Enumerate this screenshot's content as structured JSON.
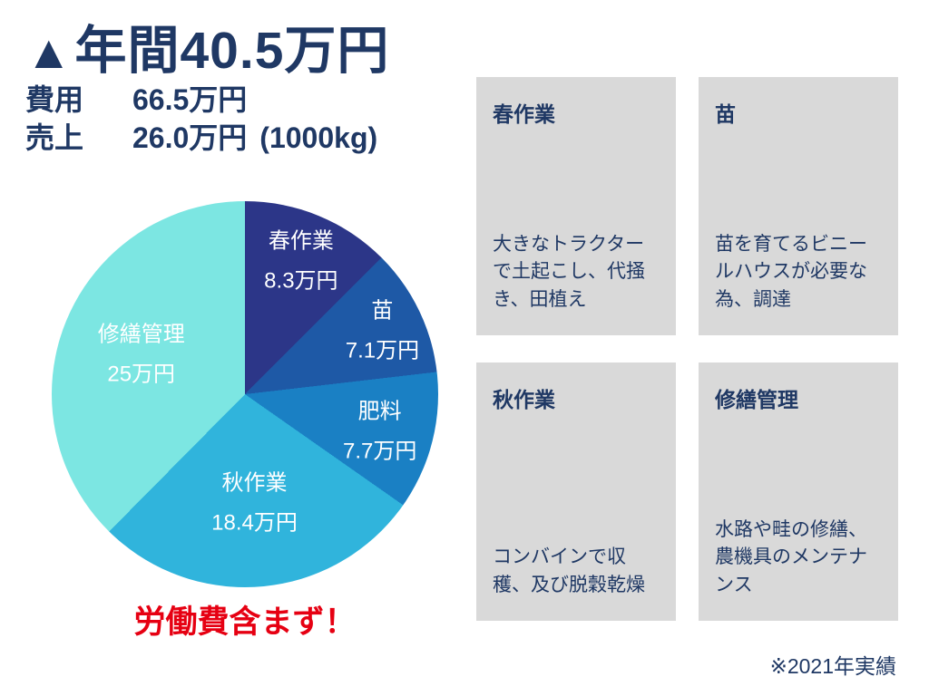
{
  "header": {
    "marker": "▲",
    "title": "年間40.5万円",
    "cost_label": "費用",
    "cost_value": "66.5万円",
    "sales_label": "売上",
    "sales_value": "26.0万円",
    "sales_unit": "(1000kg)"
  },
  "chart_data": {
    "type": "pie",
    "categories": [
      "春作業",
      "苗",
      "肥料",
      "秋作業",
      "修繕管理"
    ],
    "values": [
      8.3,
      7.1,
      7.7,
      18.4,
      25
    ],
    "value_labels": [
      "8.3万円",
      "7.1万円",
      "7.7万円",
      "18.4万円",
      "25万円"
    ],
    "colors": [
      "#2c3688",
      "#1e59a6",
      "#1a80c4",
      "#30b4dc",
      "#7ce6e2"
    ],
    "unit": "万円",
    "total": 66.5,
    "start_angle": 0,
    "direction": "clockwise",
    "label_color": "#ffffff",
    "label_radii": [
      0.76,
      0.79,
      0.72,
      0.55,
      0.58
    ],
    "legend_position": "none"
  },
  "note": "労働費含まず！",
  "cards": [
    {
      "title": "春作業",
      "body": "大きなトラクターで土起こし、代掻き、田植え"
    },
    {
      "title": "苗",
      "body": "苗を育てるビニールハウスが必要な為、調達"
    },
    {
      "title": "秋作業",
      "body": "コンバインで収穫、及び脱穀乾燥"
    },
    {
      "title": "修繕管理",
      "body": "水路や畦の修繕、農機具のメンテナンス"
    }
  ],
  "footnote": "※2021年実績"
}
